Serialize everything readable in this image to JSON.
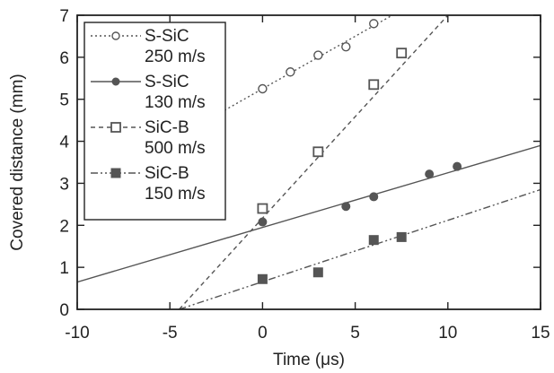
{
  "chart_data": {
    "type": "scatter",
    "xlabel": "Time (μs)",
    "ylabel": "Covered distance (mm)",
    "xlim": [
      -10,
      15
    ],
    "ylim": [
      0,
      7
    ],
    "xticks": [
      -10,
      -5,
      0,
      5,
      10,
      15
    ],
    "yticks": [
      0,
      1,
      2,
      3,
      4,
      5,
      6,
      7
    ],
    "xtick_labels": [
      "-10",
      "-5",
      "0",
      "5",
      "10",
      "15"
    ],
    "ytick_labels": [
      "0",
      "1",
      "2",
      "3",
      "4",
      "5",
      "6",
      "7"
    ],
    "grid": false,
    "legend_position": "top-left",
    "series": [
      {
        "name": "S-SiC",
        "name_line2": "250 m/s",
        "marker": "circle-open",
        "line_style": "dotted",
        "color": "#555555",
        "points": [
          [
            0,
            5.25
          ],
          [
            1.5,
            5.65
          ],
          [
            3,
            6.05
          ],
          [
            4.5,
            6.25
          ],
          [
            6,
            6.8
          ]
        ],
        "fit_line": [
          [
            -5,
            4.0
          ],
          [
            7,
            7.0
          ]
        ]
      },
      {
        "name": "S-SiC",
        "name_line2": "130 m/s",
        "marker": "circle-filled",
        "line_style": "solid",
        "color": "#555555",
        "points": [
          [
            0,
            2.08
          ],
          [
            4.5,
            2.45
          ],
          [
            6,
            2.68
          ],
          [
            9,
            3.22
          ],
          [
            10.5,
            3.4
          ]
        ],
        "fit_line": [
          [
            -10,
            0.65
          ],
          [
            15,
            3.9
          ]
        ]
      },
      {
        "name": "SiC-B",
        "name_line2": "500 m/s",
        "marker": "square-open",
        "line_style": "dashed",
        "color": "#555555",
        "points": [
          [
            0,
            2.4
          ],
          [
            3,
            3.75
          ],
          [
            6,
            5.35
          ],
          [
            7.5,
            6.1
          ]
        ],
        "fit_line": [
          [
            -4.5,
            0
          ],
          [
            10,
            7.0
          ]
        ]
      },
      {
        "name": "SiC-B",
        "name_line2": "150 m/s",
        "marker": "square-filled",
        "line_style": "dash-dot-dot",
        "color": "#555555",
        "points": [
          [
            0,
            0.72
          ],
          [
            3,
            0.88
          ],
          [
            6,
            1.65
          ],
          [
            7.5,
            1.72
          ]
        ],
        "fit_line": [
          [
            -4.5,
            0
          ],
          [
            15,
            2.85
          ]
        ]
      }
    ]
  }
}
